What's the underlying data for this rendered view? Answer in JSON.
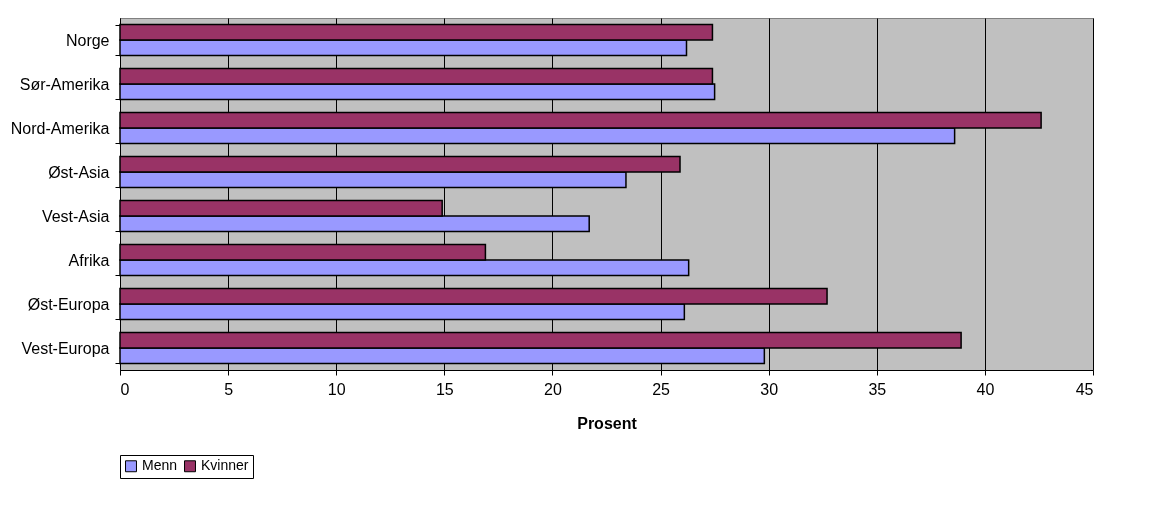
{
  "chart_data": {
    "type": "bar",
    "orientation": "horizontal",
    "xlabel": "Prosent",
    "categories": [
      "Norge",
      "Sør-Amerika",
      "Nord-Amerika",
      "Øst-Asia",
      "Vest-Asia",
      "Afrika",
      "Øst-Europa",
      "Vest-Europa"
    ],
    "series": [
      {
        "name": "Menn",
        "color": "#9999ff",
        "values": [
          26.2,
          27.5,
          38.6,
          23.4,
          21.7,
          26.3,
          26.1,
          29.8
        ]
      },
      {
        "name": "Kvinner",
        "color": "#993366",
        "values": [
          27.4,
          27.4,
          42.6,
          25.9,
          14.9,
          16.9,
          32.7,
          38.9
        ]
      }
    ],
    "xlim": [
      0,
      45
    ],
    "xticks": [
      0,
      5,
      10,
      15,
      20,
      25,
      30,
      35,
      40,
      45
    ],
    "grid": "x",
    "legend": "bottom"
  }
}
